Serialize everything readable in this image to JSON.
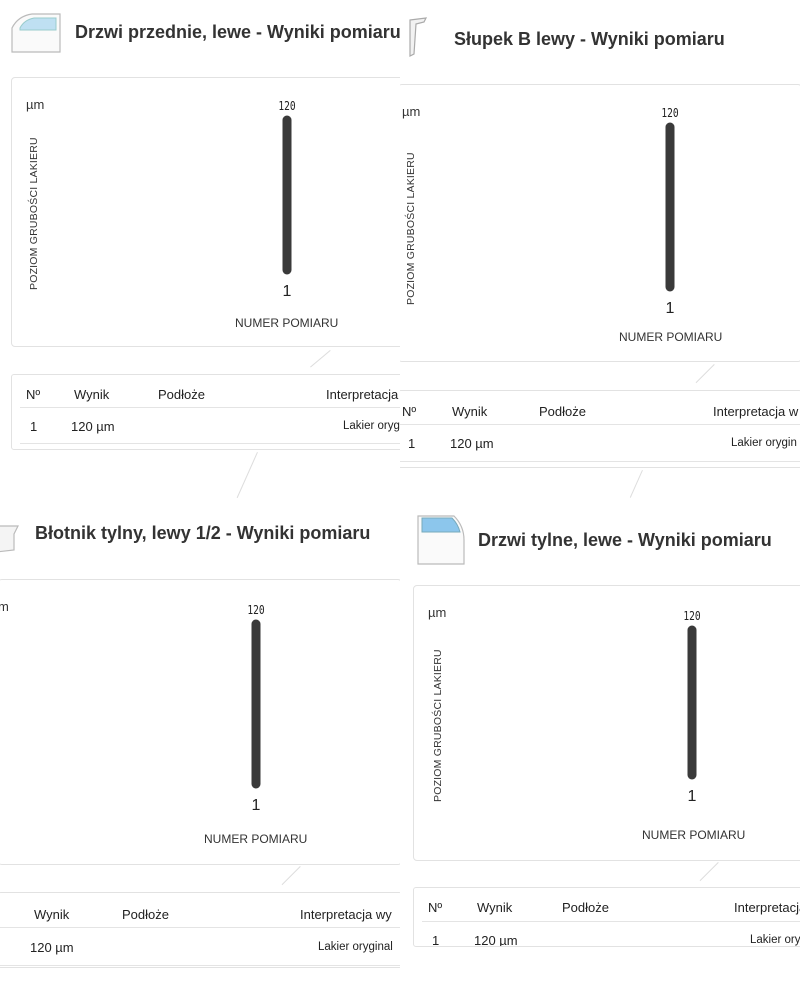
{
  "panels": [
    {
      "title": "Drzwi przednie, lewe - Wyniki pomiaru",
      "icon": "front-door-icon",
      "unit": "µm",
      "y_axis_label": "POZIOM GRUBOŚCI LAKIERU",
      "x_axis_label": "NUMER POMIARU",
      "table_headers": [
        "Nº",
        "Wynik",
        "Podłoże",
        "Interpretacja"
      ],
      "rows": [
        {
          "no": "1",
          "result": "120 µm",
          "substrate": "",
          "interpretation": "Lakier oryg"
        }
      ]
    },
    {
      "title": "Słupek B lewy - Wyniki pomiaru",
      "icon": "b-pillar-icon",
      "unit": "µm",
      "y_axis_label": "POZIOM GRUBOŚCI LAKIERU",
      "x_axis_label": "NUMER POMIARU",
      "table_headers": [
        "Nº",
        "Wynik",
        "Podłoże",
        "Interpretacja w"
      ],
      "rows": [
        {
          "no": "1",
          "result": "120 µm",
          "substrate": "",
          "interpretation": "Lakier orygin"
        }
      ]
    },
    {
      "title": "Błotnik tylny, lewy 1/2 - Wyniki pomiaru",
      "icon": "rear-fender-icon",
      "unit": "m",
      "y_axis_label": "",
      "x_axis_label": "NUMER POMIARU",
      "table_headers": [
        "",
        "Wynik",
        "Podłoże",
        "Interpretacja wy"
      ],
      "rows": [
        {
          "no": "",
          "result": "120 µm",
          "substrate": "",
          "interpretation": "Lakier oryginal"
        }
      ]
    },
    {
      "title": "Drzwi tylne, lewe - Wyniki pomiaru",
      "icon": "rear-door-icon",
      "unit": "µm",
      "y_axis_label": "POZIOM GRUBOŚCI LAKIERU",
      "x_axis_label": "NUMER POMIARU",
      "table_headers": [
        "Nº",
        "Wynik",
        "Podłoże",
        "Interpretacja"
      ],
      "rows": [
        {
          "no": "1",
          "result": "120 µm",
          "substrate": "",
          "interpretation": "Lakier oryg"
        }
      ]
    }
  ],
  "chart_data": [
    {
      "type": "bar",
      "categories": [
        "1"
      ],
      "values": [
        120
      ],
      "ylabel": "POZIOM GRUBOŚCI LAKIERU",
      "xlabel": "NUMER POMIARU",
      "unit": "µm"
    },
    {
      "type": "bar",
      "categories": [
        "1"
      ],
      "values": [
        120
      ],
      "ylabel": "POZIOM GRUBOŚCI LAKIERU",
      "xlabel": "NUMER POMIARU",
      "unit": "µm"
    },
    {
      "type": "bar",
      "categories": [
        "1"
      ],
      "values": [
        120
      ],
      "ylabel": "",
      "xlabel": "NUMER POMIARU",
      "unit": "µm"
    },
    {
      "type": "bar",
      "categories": [
        "1"
      ],
      "values": [
        120
      ],
      "ylabel": "POZIOM GRUBOŚCI LAKIERU",
      "xlabel": "NUMER POMIARU",
      "unit": "µm"
    }
  ],
  "colors": {
    "bar": "#3a3a3a",
    "border": "#e2e2e2",
    "title": "#333333"
  }
}
